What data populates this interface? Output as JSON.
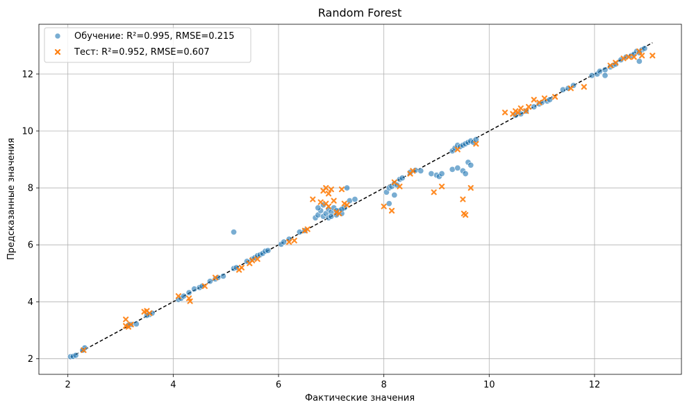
{
  "chart_data": {
    "type": "scatter",
    "title": "Random Forest",
    "xlabel": "Фактические значения",
    "ylabel": "Предсказанные значения",
    "xlim": [
      1.45,
      13.65
    ],
    "ylim": [
      1.45,
      13.75
    ],
    "xticks": [
      2,
      4,
      6,
      8,
      10,
      12
    ],
    "yticks": [
      2,
      4,
      6,
      8,
      10,
      12
    ],
    "grid": true,
    "legend_position": "top-left",
    "reference_line": {
      "style": "dashed",
      "color": "#000000",
      "x": [
        2.05,
        13.1
      ],
      "y": [
        2.05,
        13.1
      ]
    },
    "series": [
      {
        "name": "Обучение: R²=0.995, RMSE=0.215",
        "marker": "circle",
        "color": "#1f77b4",
        "points": [
          [
            2.05,
            2.07
          ],
          [
            2.1,
            2.08
          ],
          [
            2.15,
            2.12
          ],
          [
            2.3,
            2.33
          ],
          [
            2.32,
            2.38
          ],
          [
            2.28,
            2.3
          ],
          [
            3.2,
            3.2
          ],
          [
            3.3,
            3.22
          ],
          [
            3.15,
            3.18
          ],
          [
            3.55,
            3.55
          ],
          [
            3.6,
            3.6
          ],
          [
            3.5,
            3.52
          ],
          [
            4.1,
            4.08
          ],
          [
            4.15,
            4.12
          ],
          [
            4.2,
            4.2
          ],
          [
            4.3,
            4.32
          ],
          [
            4.4,
            4.45
          ],
          [
            4.5,
            4.5
          ],
          [
            4.55,
            4.55
          ],
          [
            4.7,
            4.72
          ],
          [
            4.8,
            4.8
          ],
          [
            4.85,
            4.85
          ],
          [
            4.95,
            4.9
          ],
          [
            5.15,
            5.17
          ],
          [
            5.2,
            5.2
          ],
          [
            5.4,
            5.42
          ],
          [
            5.5,
            5.5
          ],
          [
            5.55,
            5.55
          ],
          [
            5.6,
            5.62
          ],
          [
            5.65,
            5.65
          ],
          [
            5.7,
            5.7
          ],
          [
            5.75,
            5.78
          ],
          [
            5.8,
            5.8
          ],
          [
            5.15,
            6.45
          ],
          [
            6.05,
            6.02
          ],
          [
            6.1,
            6.1
          ],
          [
            6.2,
            6.2
          ],
          [
            6.4,
            6.45
          ],
          [
            6.5,
            6.5
          ],
          [
            6.7,
            6.95
          ],
          [
            6.75,
            7.05
          ],
          [
            6.8,
            7.2
          ],
          [
            6.85,
            7.0
          ],
          [
            6.9,
            7.1
          ],
          [
            6.95,
            7.25
          ],
          [
            7.0,
            7.15
          ],
          [
            7.05,
            7.3
          ],
          [
            7.1,
            7.05
          ],
          [
            7.15,
            7.2
          ],
          [
            7.2,
            7.1
          ],
          [
            7.25,
            7.3
          ],
          [
            6.85,
            7.4
          ],
          [
            7.3,
            8.0
          ],
          [
            7.35,
            7.55
          ],
          [
            7.45,
            7.6
          ],
          [
            6.95,
            6.95
          ],
          [
            7.0,
            7.0
          ],
          [
            7.1,
            7.2
          ],
          [
            6.75,
            7.3
          ],
          [
            7.2,
            7.25
          ],
          [
            8.05,
            7.85
          ],
          [
            8.1,
            8.0
          ],
          [
            8.15,
            8.05
          ],
          [
            8.2,
            8.15
          ],
          [
            8.25,
            8.1
          ],
          [
            8.3,
            8.3
          ],
          [
            8.35,
            8.35
          ],
          [
            8.5,
            8.55
          ],
          [
            8.6,
            8.62
          ],
          [
            8.7,
            8.6
          ],
          [
            8.1,
            7.45
          ],
          [
            8.2,
            7.75
          ],
          [
            8.9,
            8.5
          ],
          [
            9.0,
            8.45
          ],
          [
            9.05,
            8.4
          ],
          [
            9.1,
            8.5
          ],
          [
            9.3,
            8.65
          ],
          [
            9.4,
            8.7
          ],
          [
            9.5,
            8.6
          ],
          [
            9.55,
            8.5
          ],
          [
            9.6,
            8.9
          ],
          [
            9.65,
            8.8
          ],
          [
            9.3,
            9.3
          ],
          [
            9.35,
            9.4
          ],
          [
            9.4,
            9.5
          ],
          [
            9.45,
            9.45
          ],
          [
            9.5,
            9.5
          ],
          [
            9.55,
            9.55
          ],
          [
            9.6,
            9.6
          ],
          [
            9.65,
            9.65
          ],
          [
            9.7,
            9.6
          ],
          [
            9.75,
            9.7
          ],
          [
            10.5,
            10.55
          ],
          [
            10.6,
            10.6
          ],
          [
            10.7,
            10.7
          ],
          [
            10.85,
            10.85
          ],
          [
            10.95,
            10.95
          ],
          [
            11.0,
            11.0
          ],
          [
            11.1,
            11.05
          ],
          [
            11.15,
            11.1
          ],
          [
            11.4,
            11.45
          ],
          [
            11.5,
            11.5
          ],
          [
            11.6,
            11.6
          ],
          [
            11.95,
            11.95
          ],
          [
            12.05,
            12.0
          ],
          [
            12.1,
            12.1
          ],
          [
            12.2,
            12.15
          ],
          [
            12.2,
            11.95
          ],
          [
            12.3,
            12.25
          ],
          [
            12.35,
            12.3
          ],
          [
            12.4,
            12.35
          ],
          [
            12.5,
            12.5
          ],
          [
            12.6,
            12.6
          ],
          [
            12.7,
            12.65
          ],
          [
            12.75,
            12.7
          ],
          [
            12.8,
            12.8
          ],
          [
            12.85,
            12.45
          ],
          [
            12.9,
            12.85
          ],
          [
            12.95,
            12.9
          ],
          [
            12.85,
            12.75
          ]
        ]
      },
      {
        "name": "Тест: R²=0.952, RMSE=0.607",
        "marker": "x",
        "color": "#ff7f0e",
        "points": [
          [
            2.3,
            2.3
          ],
          [
            3.1,
            3.38
          ],
          [
            3.1,
            3.15
          ],
          [
            3.15,
            3.12
          ],
          [
            3.2,
            3.2
          ],
          [
            3.45,
            3.65
          ],
          [
            3.5,
            3.68
          ],
          [
            3.55,
            3.6
          ],
          [
            4.1,
            4.2
          ],
          [
            4.3,
            4.12
          ],
          [
            4.32,
            4.02
          ],
          [
            4.6,
            4.55
          ],
          [
            4.8,
            4.85
          ],
          [
            5.25,
            5.12
          ],
          [
            5.3,
            5.2
          ],
          [
            5.45,
            5.35
          ],
          [
            5.5,
            5.45
          ],
          [
            5.6,
            5.5
          ],
          [
            6.2,
            6.1
          ],
          [
            6.3,
            6.15
          ],
          [
            6.5,
            6.5
          ],
          [
            6.55,
            6.55
          ],
          [
            6.65,
            7.6
          ],
          [
            6.8,
            7.5
          ],
          [
            6.85,
            7.9
          ],
          [
            6.9,
            8.0
          ],
          [
            6.95,
            7.8
          ],
          [
            7.0,
            7.95
          ],
          [
            7.05,
            7.55
          ],
          [
            7.1,
            7.15
          ],
          [
            7.15,
            7.1
          ],
          [
            7.2,
            7.95
          ],
          [
            7.25,
            7.45
          ],
          [
            7.3,
            7.4
          ],
          [
            6.95,
            7.35
          ],
          [
            6.9,
            7.45
          ],
          [
            8.0,
            7.35
          ],
          [
            8.15,
            7.2
          ],
          [
            8.2,
            8.2
          ],
          [
            8.3,
            8.05
          ],
          [
            8.5,
            8.5
          ],
          [
            8.55,
            8.6
          ],
          [
            8.95,
            7.85
          ],
          [
            9.1,
            8.05
          ],
          [
            9.4,
            9.35
          ],
          [
            9.5,
            7.6
          ],
          [
            9.52,
            7.1
          ],
          [
            9.55,
            7.05
          ],
          [
            9.65,
            8.0
          ],
          [
            9.75,
            9.55
          ],
          [
            10.3,
            10.65
          ],
          [
            10.45,
            10.6
          ],
          [
            10.5,
            10.7
          ],
          [
            10.55,
            10.65
          ],
          [
            10.6,
            10.8
          ],
          [
            10.7,
            10.7
          ],
          [
            10.75,
            10.85
          ],
          [
            10.85,
            11.1
          ],
          [
            10.95,
            11.0
          ],
          [
            11.05,
            11.15
          ],
          [
            11.25,
            11.2
          ],
          [
            11.55,
            11.5
          ],
          [
            11.8,
            11.55
          ],
          [
            12.3,
            12.3
          ],
          [
            12.4,
            12.4
          ],
          [
            12.55,
            12.55
          ],
          [
            12.65,
            12.6
          ],
          [
            12.75,
            12.6
          ],
          [
            12.85,
            12.8
          ],
          [
            12.9,
            12.65
          ],
          [
            13.1,
            12.65
          ]
        ]
      }
    ]
  }
}
